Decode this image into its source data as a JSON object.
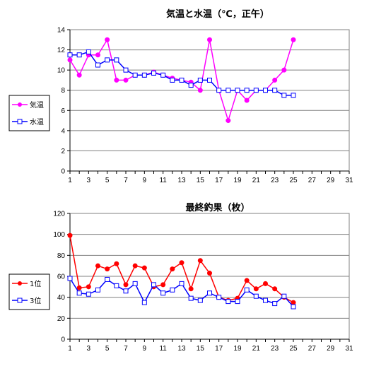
{
  "chart_data": [
    {
      "type": "line",
      "title": "気温と水温（℃，正午）",
      "x": [
        1,
        2,
        3,
        4,
        5,
        6,
        7,
        8,
        9,
        10,
        11,
        12,
        13,
        14,
        15,
        16,
        17,
        18,
        19,
        20,
        21,
        22,
        23,
        24,
        25
      ],
      "xticks": [
        1,
        3,
        5,
        7,
        9,
        11,
        13,
        15,
        17,
        19,
        21,
        23,
        25,
        27,
        29,
        31
      ],
      "xlim": [
        1,
        31
      ],
      "ylim": [
        0,
        14
      ],
      "yticks": [
        0,
        2,
        4,
        6,
        8,
        10,
        12,
        14
      ],
      "grid": true,
      "legend_position": "left",
      "series": [
        {
          "name": "気温",
          "color": "#ff00ff",
          "marker": "circle",
          "values": [
            11,
            9.5,
            11.5,
            11.5,
            13,
            9,
            9,
            9.5,
            9.5,
            9.8,
            9.5,
            9.2,
            9,
            8.8,
            8,
            13,
            8,
            5,
            8,
            7,
            8,
            8,
            9,
            10,
            13
          ]
        },
        {
          "name": "水温",
          "color": "#0000ff",
          "marker": "square",
          "values": [
            11.5,
            11.5,
            11.8,
            10.5,
            11,
            11,
            10,
            9.5,
            9.5,
            9.7,
            9.5,
            9,
            9,
            8.5,
            9,
            9,
            8,
            8,
            8,
            8,
            8,
            8,
            8,
            7.5,
            7.5
          ]
        }
      ]
    },
    {
      "type": "line",
      "title": "最終釣果（枚）",
      "x": [
        1,
        2,
        3,
        4,
        5,
        6,
        7,
        8,
        9,
        10,
        11,
        12,
        13,
        14,
        15,
        16,
        17,
        18,
        19,
        20,
        21,
        22,
        23,
        24,
        25
      ],
      "xticks": [
        1,
        3,
        5,
        7,
        9,
        11,
        13,
        15,
        17,
        19,
        21,
        23,
        25,
        27,
        29,
        31
      ],
      "xlim": [
        1,
        31
      ],
      "ylim": [
        0,
        120
      ],
      "yticks": [
        0,
        20,
        40,
        60,
        80,
        100,
        120
      ],
      "grid": true,
      "legend_position": "left",
      "series": [
        {
          "name": "1位",
          "color": "#ff0000",
          "marker": "circle",
          "values": [
            99,
            49,
            50,
            70,
            67,
            72,
            52,
            70,
            68,
            50,
            52,
            67,
            73,
            48,
            75,
            63,
            40,
            37,
            39,
            56,
            48,
            53,
            48,
            40,
            35
          ]
        },
        {
          "name": "3位",
          "color": "#0000ff",
          "marker": "square",
          "values": [
            58,
            44,
            43,
            47,
            57,
            51,
            46,
            53,
            35,
            52,
            44,
            47,
            53,
            39,
            37,
            44,
            40,
            36,
            36,
            47,
            41,
            37,
            34,
            41,
            31
          ]
        }
      ]
    }
  ]
}
